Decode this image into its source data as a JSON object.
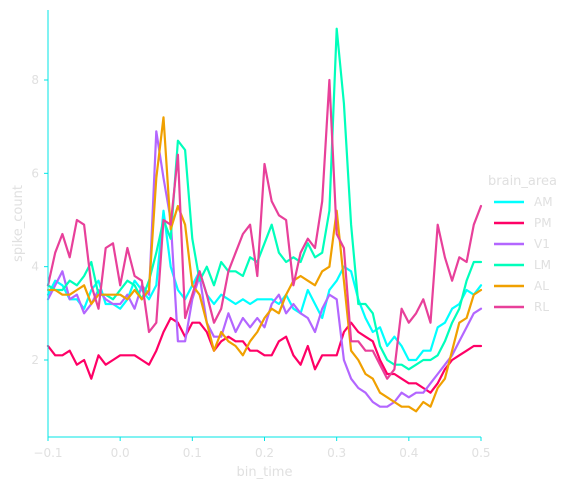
{
  "chart_data": {
    "type": "line",
    "xlabel": "bin_time",
    "ylabel": "spike_count",
    "xlim": [
      -0.1,
      0.5
    ],
    "ylim": [
      0.35,
      9.5
    ],
    "x_ticks": [
      -0.1,
      0.0,
      0.1,
      0.2,
      0.3,
      0.4,
      0.5
    ],
    "x_tick_labels": [
      "−0.1",
      "0.0",
      "0.1",
      "0.2",
      "0.3",
      "0.4",
      "0.5"
    ],
    "y_ticks": [
      2,
      4,
      6,
      8
    ],
    "y_tick_labels": [
      "2",
      "4",
      "6",
      "8"
    ],
    "grid": false,
    "axis_color": "#00e5e5",
    "legend": {
      "title": "brain_area",
      "placement": "right"
    },
    "x": [
      -0.1,
      -0.09,
      -0.08,
      -0.07,
      -0.06,
      -0.05,
      -0.04,
      -0.03,
      -0.02,
      -0.01,
      0.0,
      0.01,
      0.02,
      0.03,
      0.04,
      0.05,
      0.06,
      0.07,
      0.08,
      0.09,
      0.1,
      0.11,
      0.12,
      0.13,
      0.14,
      0.15,
      0.16,
      0.17,
      0.18,
      0.19,
      0.2,
      0.21,
      0.22,
      0.23,
      0.24,
      0.25,
      0.26,
      0.27,
      0.28,
      0.29,
      0.3,
      0.31,
      0.32,
      0.33,
      0.34,
      0.35,
      0.36,
      0.37,
      0.38,
      0.39,
      0.4,
      0.41,
      0.42,
      0.43,
      0.44,
      0.45,
      0.46,
      0.47,
      0.48,
      0.49,
      0.5
    ],
    "series": [
      {
        "name": "AM",
        "color": "#00ffff",
        "values": [
          3.4,
          3.7,
          3.6,
          3.3,
          3.3,
          3.1,
          3.5,
          3.7,
          3.2,
          3.2,
          3.1,
          3.3,
          3.7,
          3.5,
          3.3,
          3.6,
          5.2,
          4.0,
          3.5,
          3.3,
          3.6,
          3.9,
          3.4,
          3.2,
          3.4,
          3.3,
          3.2,
          3.3,
          3.2,
          3.3,
          3.3,
          3.3,
          3.2,
          3.4,
          3.1,
          3.0,
          3.5,
          3.2,
          2.9,
          3.5,
          3.7,
          4.0,
          3.9,
          3.3,
          2.9,
          2.6,
          2.7,
          2.3,
          2.5,
          2.3,
          2.0,
          2.0,
          2.2,
          2.2,
          2.7,
          2.8,
          3.1,
          3.2,
          3.5,
          3.4,
          3.6
        ]
      },
      {
        "name": "PM",
        "color": "#ff0066",
        "values": [
          2.3,
          2.1,
          2.1,
          2.2,
          1.9,
          2.0,
          1.6,
          2.1,
          1.9,
          2.0,
          2.1,
          2.1,
          2.1,
          2.0,
          1.9,
          2.2,
          2.6,
          2.9,
          2.8,
          2.5,
          2.8,
          2.8,
          2.6,
          2.2,
          2.4,
          2.5,
          2.4,
          2.4,
          2.2,
          2.2,
          2.1,
          2.1,
          2.4,
          2.5,
          2.1,
          1.9,
          2.3,
          1.8,
          2.1,
          2.1,
          2.1,
          2.6,
          2.8,
          2.6,
          2.5,
          2.4,
          2.0,
          1.7,
          1.7,
          1.6,
          1.5,
          1.5,
          1.4,
          1.3,
          1.5,
          1.8,
          2.0,
          2.1,
          2.2,
          2.3,
          2.3
        ]
      },
      {
        "name": "V1",
        "color": "#b366ff",
        "values": [
          3.3,
          3.6,
          3.9,
          3.3,
          3.4,
          3.0,
          3.2,
          3.5,
          3.3,
          3.2,
          3.2,
          3.4,
          3.1,
          3.6,
          3.4,
          6.9,
          5.9,
          5.0,
          2.4,
          2.4,
          3.3,
          3.8,
          2.8,
          2.5,
          2.5,
          3.0,
          2.6,
          2.9,
          2.7,
          2.9,
          2.7,
          3.2,
          3.4,
          3.0,
          3.2,
          3.0,
          2.9,
          2.6,
          3.1,
          3.4,
          3.3,
          2.0,
          1.6,
          1.4,
          1.3,
          1.1,
          1.0,
          1.0,
          1.1,
          1.3,
          1.2,
          1.3,
          1.3,
          1.5,
          1.7,
          1.9,
          2.1,
          2.4,
          2.7,
          3.0,
          3.1
        ]
      },
      {
        "name": "LM",
        "color": "#00ffbb",
        "values": [
          3.6,
          3.5,
          3.5,
          3.7,
          3.6,
          3.8,
          4.1,
          3.4,
          3.4,
          3.3,
          3.5,
          3.7,
          3.6,
          3.3,
          3.7,
          4.3,
          5.0,
          4.6,
          6.7,
          6.5,
          4.6,
          3.7,
          4.0,
          3.6,
          4.1,
          3.9,
          3.9,
          3.8,
          4.2,
          4.1,
          4.5,
          4.9,
          4.3,
          4.1,
          4.2,
          4.1,
          4.5,
          4.2,
          4.3,
          5.2,
          9.1,
          7.5,
          4.9,
          3.2,
          3.2,
          3.0,
          2.3,
          2.0,
          1.9,
          1.9,
          1.8,
          1.9,
          2.0,
          2.0,
          2.1,
          2.4,
          2.8,
          3.1,
          3.7,
          4.1,
          4.1
        ]
      },
      {
        "name": "AL",
        "color": "#f0a000",
        "values": [
          3.5,
          3.5,
          3.4,
          3.4,
          3.5,
          3.6,
          3.2,
          3.4,
          3.4,
          3.4,
          3.4,
          3.3,
          3.5,
          3.3,
          3.5,
          5.9,
          7.2,
          4.8,
          5.3,
          4.9,
          3.6,
          3.4,
          2.8,
          2.2,
          2.6,
          2.4,
          2.3,
          2.1,
          2.4,
          2.6,
          2.9,
          3.1,
          3.0,
          3.4,
          3.7,
          3.8,
          3.7,
          3.6,
          3.9,
          4.0,
          5.2,
          3.7,
          2.2,
          2.0,
          1.7,
          1.6,
          1.3,
          1.2,
          1.1,
          1.0,
          1.0,
          0.9,
          1.1,
          1.0,
          1.4,
          1.6,
          2.2,
          2.8,
          2.9,
          3.4,
          3.5
        ]
      },
      {
        "name": "RL",
        "color": "#e8409a",
        "values": [
          3.6,
          4.3,
          4.7,
          4.2,
          5.0,
          4.9,
          3.6,
          3.1,
          4.4,
          4.5,
          3.6,
          4.4,
          3.8,
          3.7,
          2.6,
          2.8,
          5.0,
          4.9,
          6.4,
          2.9,
          3.4,
          3.9,
          3.4,
          2.8,
          3.1,
          3.9,
          4.3,
          4.7,
          4.9,
          3.8,
          6.2,
          5.4,
          5.1,
          5.0,
          3.6,
          4.3,
          4.6,
          4.4,
          5.4,
          8.0,
          4.7,
          4.4,
          2.4,
          2.4,
          2.2,
          2.2,
          1.9,
          1.6,
          1.8,
          3.1,
          2.8,
          3.0,
          3.3,
          2.8,
          4.9,
          4.2,
          3.7,
          4.2,
          4.1,
          4.9,
          5.3
        ]
      }
    ]
  }
}
